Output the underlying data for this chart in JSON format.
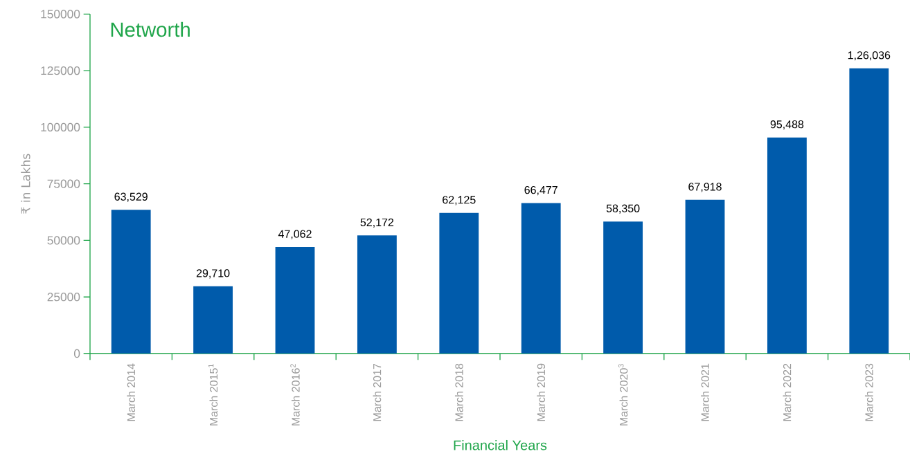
{
  "chart_data": {
    "type": "bar",
    "title": "Networth",
    "xlabel": "Financial Years",
    "ylabel": "₹ in Lakhs",
    "categories": [
      "March 2014",
      "March 2015$^{1}$",
      "March 2016$^{2}$",
      "March 2017",
      "March 2018",
      "March 2019",
      "March 2020$^{3}$",
      "March 2021",
      "March 2022",
      "March 2023"
    ],
    "values": [
      63529,
      29710,
      47062,
      52172,
      62125,
      66477,
      58350,
      67918,
      95488,
      126036
    ],
    "value_labels": [
      "63,529",
      "29,710",
      "47,062",
      "52,172",
      "62,125",
      "66,477",
      "58,350",
      "67,918",
      "95,488",
      "1,26,036"
    ],
    "color": "#005bab",
    "ylim": [
      0,
      150000
    ],
    "yticks": [
      0,
      25000,
      50000,
      75000,
      100000,
      125000,
      150000
    ],
    "grid": false
  }
}
